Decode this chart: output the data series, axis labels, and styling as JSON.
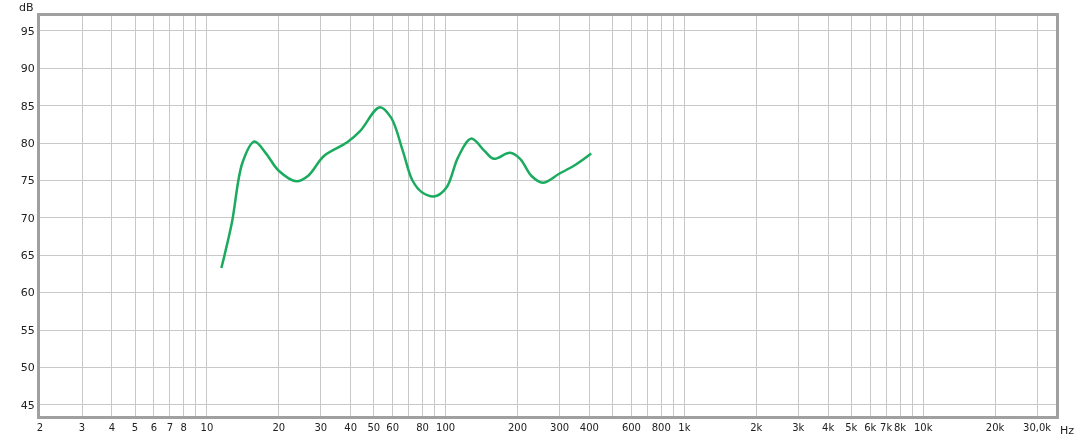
{
  "chart_data": {
    "type": "line",
    "xlabel": "Hz",
    "ylabel": "dB",
    "log": "x",
    "grid": true,
    "marker": "none",
    "line_style": "solid",
    "x": [
      11.5,
      12.7,
      14.1,
      15.8,
      17.6,
      20,
      23.7,
      26.5,
      31,
      38.7,
      43.8,
      53,
      59.1,
      66.1,
      72.6,
      79.8,
      90.4,
      101,
      112.7,
      127.9,
      145,
      159,
      186,
      205,
      229,
      255,
      299,
      350,
      407
    ],
    "series": [
      {
        "color": "#1aab5f",
        "values": [
          63.3,
          69.2,
          77.4,
          80.2,
          78.7,
          76.3,
          74.9,
          75.6,
          78.3,
          80.1,
          81.6,
          84.8,
          83.4,
          79.0,
          75.0,
          73.4,
          72.9,
          74.1,
          78.1,
          80.6,
          79.0,
          77.9,
          78.7,
          77.9,
          75.6,
          74.7,
          75.9,
          77.1,
          78.6
        ]
      }
    ],
    "xlim": [
      2,
      36000
    ],
    "ylim": [
      43.5,
      97
    ],
    "yticks": [
      45,
      50,
      55,
      60,
      65,
      70,
      75,
      80,
      85,
      90,
      95
    ],
    "xticks": [
      2,
      3,
      4,
      5,
      6,
      7,
      8,
      {
        "value": 9,
        "label": null
      },
      10,
      20,
      30,
      40,
      50,
      60,
      {
        "value": 70,
        "label": null
      },
      80,
      {
        "value": 90,
        "label": null
      },
      100,
      200,
      300,
      400,
      {
        "value": 500,
        "label": null
      },
      600,
      {
        "value": 700,
        "label": null
      },
      800,
      {
        "value": 900,
        "label": null
      },
      {
        "value": 1000,
        "label": "1k"
      },
      {
        "value": 2000,
        "label": "2k"
      },
      {
        "value": 3000,
        "label": "3k"
      },
      {
        "value": 4000,
        "label": "4k"
      },
      {
        "value": 5000,
        "label": "5k"
      },
      {
        "value": 6000,
        "label": "6k"
      },
      {
        "value": 7000,
        "label": "7k"
      },
      {
        "value": 8000,
        "label": "8k"
      },
      {
        "value": 9000,
        "label": null
      },
      {
        "value": 10000,
        "label": "10k"
      },
      {
        "value": 20000,
        "label": "20k"
      },
      {
        "value": 30000,
        "label": "30,0k"
      }
    ]
  }
}
